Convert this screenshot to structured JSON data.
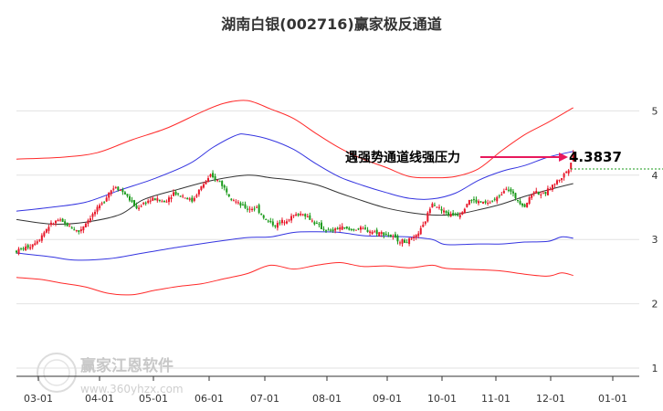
{
  "chart_data": {
    "type": "candlestick",
    "title": "湖南白银(002716)赢家极反通道",
    "x_labels": [
      "03-01",
      "04-01",
      "05-01",
      "06-01",
      "07-01",
      "08-01",
      "09-01",
      "10-01",
      "11-01",
      "12-01",
      "01-01"
    ],
    "y_ticks": [
      "1",
      "2",
      "3",
      "4",
      "5"
    ],
    "ylim": [
      1,
      5
    ],
    "grid": "horizontal",
    "annotation": {
      "text": "遇强势通道线强压力",
      "price": "4.3837",
      "color": "#e8185c"
    },
    "colors": {
      "up": "#e8182a",
      "down": "#1a9a1a",
      "upper_band": "#ff2a2a",
      "upper_channel": "#3434e0",
      "middle_line": "#333333",
      "lower_channel": "#3434e0",
      "lower_band": "#ff2a2a",
      "dotted_level": "#1a9a1a"
    },
    "series": [
      {
        "role": "upper-band",
        "points": [
          [
            0,
            4.25
          ],
          [
            20,
            4.28
          ],
          [
            35,
            4.35
          ],
          [
            50,
            4.55
          ],
          [
            65,
            4.73
          ],
          [
            80,
            4.98
          ],
          [
            90,
            5.12
          ],
          [
            100,
            5.16
          ],
          [
            110,
            5.03
          ],
          [
            120,
            4.88
          ],
          [
            130,
            4.64
          ],
          [
            140,
            4.42
          ],
          [
            150,
            4.25
          ],
          [
            160,
            4.12
          ],
          [
            170,
            3.98
          ],
          [
            180,
            3.96
          ],
          [
            190,
            3.98
          ],
          [
            200,
            4.1
          ],
          [
            210,
            4.38
          ],
          [
            220,
            4.63
          ],
          [
            230,
            4.82
          ],
          [
            241,
            5.05
          ]
        ]
      },
      {
        "role": "upper-channel",
        "points": [
          [
            0,
            3.44
          ],
          [
            15,
            3.5
          ],
          [
            30,
            3.58
          ],
          [
            45,
            3.77
          ],
          [
            60,
            3.95
          ],
          [
            75,
            4.18
          ],
          [
            85,
            4.43
          ],
          [
            95,
            4.62
          ],
          [
            100,
            4.63
          ],
          [
            110,
            4.55
          ],
          [
            120,
            4.4
          ],
          [
            130,
            4.17
          ],
          [
            140,
            3.97
          ],
          [
            150,
            3.84
          ],
          [
            160,
            3.73
          ],
          [
            170,
            3.64
          ],
          [
            180,
            3.63
          ],
          [
            190,
            3.72
          ],
          [
            200,
            3.92
          ],
          [
            210,
            4.06
          ],
          [
            220,
            4.15
          ],
          [
            230,
            4.28
          ],
          [
            241,
            4.37
          ]
        ]
      },
      {
        "role": "middle-line",
        "points": [
          [
            0,
            3.31
          ],
          [
            15,
            3.24
          ],
          [
            30,
            3.27
          ],
          [
            45,
            3.39
          ],
          [
            55,
            3.62
          ],
          [
            70,
            3.78
          ],
          [
            85,
            3.92
          ],
          [
            100,
            4.0
          ],
          [
            110,
            3.96
          ],
          [
            120,
            3.92
          ],
          [
            130,
            3.85
          ],
          [
            140,
            3.72
          ],
          [
            150,
            3.6
          ],
          [
            160,
            3.49
          ],
          [
            170,
            3.42
          ],
          [
            180,
            3.38
          ],
          [
            190,
            3.39
          ],
          [
            200,
            3.46
          ],
          [
            210,
            3.55
          ],
          [
            220,
            3.67
          ],
          [
            230,
            3.77
          ],
          [
            241,
            3.87
          ]
        ]
      },
      {
        "role": "lower-channel",
        "points": [
          [
            0,
            2.79
          ],
          [
            15,
            2.73
          ],
          [
            25,
            2.68
          ],
          [
            40,
            2.7
          ],
          [
            55,
            2.79
          ],
          [
            70,
            2.88
          ],
          [
            85,
            2.96
          ],
          [
            100,
            3.03
          ],
          [
            110,
            3.04
          ],
          [
            120,
            3.11
          ],
          [
            130,
            3.12
          ],
          [
            140,
            3.11
          ],
          [
            150,
            3.06
          ],
          [
            160,
            3.05
          ],
          [
            170,
            3.04
          ],
          [
            180,
            3.0
          ],
          [
            186,
            2.92
          ],
          [
            200,
            2.93
          ],
          [
            210,
            2.93
          ],
          [
            220,
            2.96
          ],
          [
            230,
            2.97
          ],
          [
            236,
            3.04
          ],
          [
            241,
            3.02
          ]
        ]
      },
      {
        "role": "lower-band",
        "points": [
          [
            0,
            2.41
          ],
          [
            10,
            2.38
          ],
          [
            20,
            2.32
          ],
          [
            30,
            2.26
          ],
          [
            40,
            2.16
          ],
          [
            50,
            2.14
          ],
          [
            60,
            2.21
          ],
          [
            70,
            2.27
          ],
          [
            80,
            2.31
          ],
          [
            90,
            2.39
          ],
          [
            100,
            2.47
          ],
          [
            110,
            2.6
          ],
          [
            120,
            2.54
          ],
          [
            130,
            2.6
          ],
          [
            140,
            2.64
          ],
          [
            150,
            2.58
          ],
          [
            160,
            2.59
          ],
          [
            170,
            2.56
          ],
          [
            180,
            2.6
          ],
          [
            186,
            2.55
          ],
          [
            200,
            2.53
          ],
          [
            210,
            2.51
          ],
          [
            220,
            2.46
          ],
          [
            230,
            2.43
          ],
          [
            236,
            2.48
          ],
          [
            241,
            2.44
          ]
        ]
      }
    ],
    "price_path": [
      [
        0,
        2.82
      ],
      [
        6,
        2.9
      ],
      [
        10,
        3.02
      ],
      [
        14,
        3.21
      ],
      [
        18,
        3.3
      ],
      [
        22,
        3.22
      ],
      [
        27,
        3.12
      ],
      [
        32,
        3.35
      ],
      [
        37,
        3.55
      ],
      [
        40,
        3.74
      ],
      [
        43,
        3.83
      ],
      [
        47,
        3.71
      ],
      [
        52,
        3.48
      ],
      [
        56,
        3.59
      ],
      [
        60,
        3.63
      ],
      [
        64,
        3.58
      ],
      [
        68,
        3.73
      ],
      [
        72,
        3.68
      ],
      [
        76,
        3.6
      ],
      [
        80,
        3.82
      ],
      [
        84,
        3.98
      ],
      [
        88,
        3.9
      ],
      [
        92,
        3.7
      ],
      [
        96,
        3.55
      ],
      [
        100,
        3.48
      ],
      [
        104,
        3.49
      ],
      [
        108,
        3.3
      ],
      [
        112,
        3.22
      ],
      [
        116,
        3.3
      ],
      [
        120,
        3.37
      ],
      [
        124,
        3.41
      ],
      [
        128,
        3.29
      ],
      [
        132,
        3.18
      ],
      [
        136,
        3.12
      ],
      [
        140,
        3.19
      ],
      [
        144,
        3.15
      ],
      [
        148,
        3.17
      ],
      [
        152,
        3.14
      ],
      [
        156,
        3.11
      ],
      [
        160,
        3.09
      ],
      [
        164,
        3.01
      ],
      [
        168,
        2.96
      ],
      [
        172,
        3.01
      ],
      [
        176,
        3.2
      ],
      [
        180,
        3.59
      ],
      [
        184,
        3.45
      ],
      [
        188,
        3.38
      ],
      [
        192,
        3.4
      ],
      [
        196,
        3.62
      ],
      [
        200,
        3.58
      ],
      [
        204,
        3.56
      ],
      [
        208,
        3.64
      ],
      [
        212,
        3.82
      ],
      [
        216,
        3.65
      ],
      [
        220,
        3.52
      ],
      [
        224,
        3.76
      ],
      [
        228,
        3.69
      ],
      [
        232,
        3.84
      ],
      [
        236,
        3.97
      ],
      [
        239,
        4.1
      ],
      [
        241,
        4.35
      ]
    ]
  }
}
